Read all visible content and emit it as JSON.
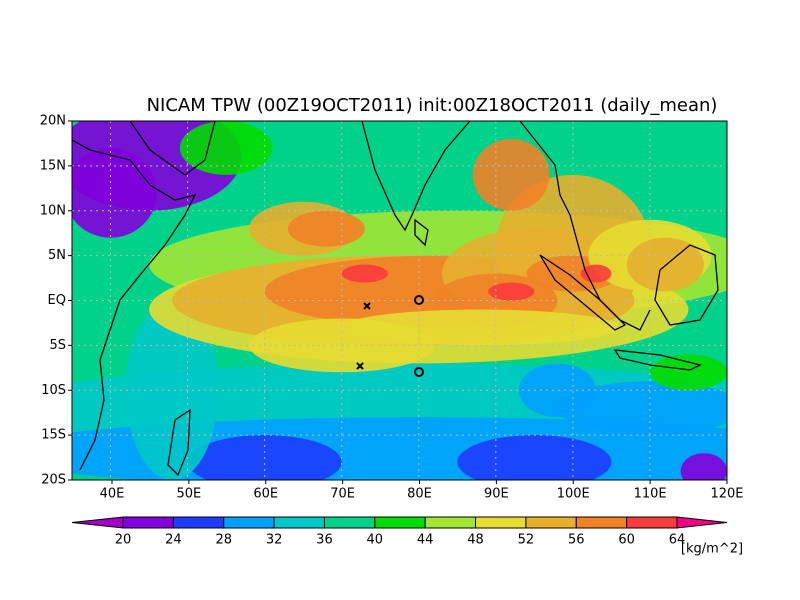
{
  "title": "NICAM TPW (00Z19OCT2011) init:00Z18OCT2011 (daily_mean)",
  "map": {
    "lat_labels": [
      "20N",
      "15N",
      "10N",
      "5N",
      "EQ",
      "5S",
      "10S",
      "15S",
      "20S"
    ],
    "lon_labels": [
      "40E",
      "50E",
      "60E",
      "70E",
      "80E",
      "90E",
      "100E",
      "110E",
      "120E"
    ]
  },
  "colorbar": {
    "levels": [
      20,
      24,
      28,
      32,
      36,
      40,
      44,
      48,
      52,
      56,
      60,
      64
    ],
    "colors": [
      "#a000c8",
      "#8200dc",
      "#1e3cff",
      "#00a0ff",
      "#00c8c8",
      "#00d28c",
      "#00dc00",
      "#a0e632",
      "#e6dc32",
      "#e6af2d",
      "#f08228",
      "#fa3c3c",
      "#f00082"
    ],
    "unit": "[kg/m^2]"
  }
}
